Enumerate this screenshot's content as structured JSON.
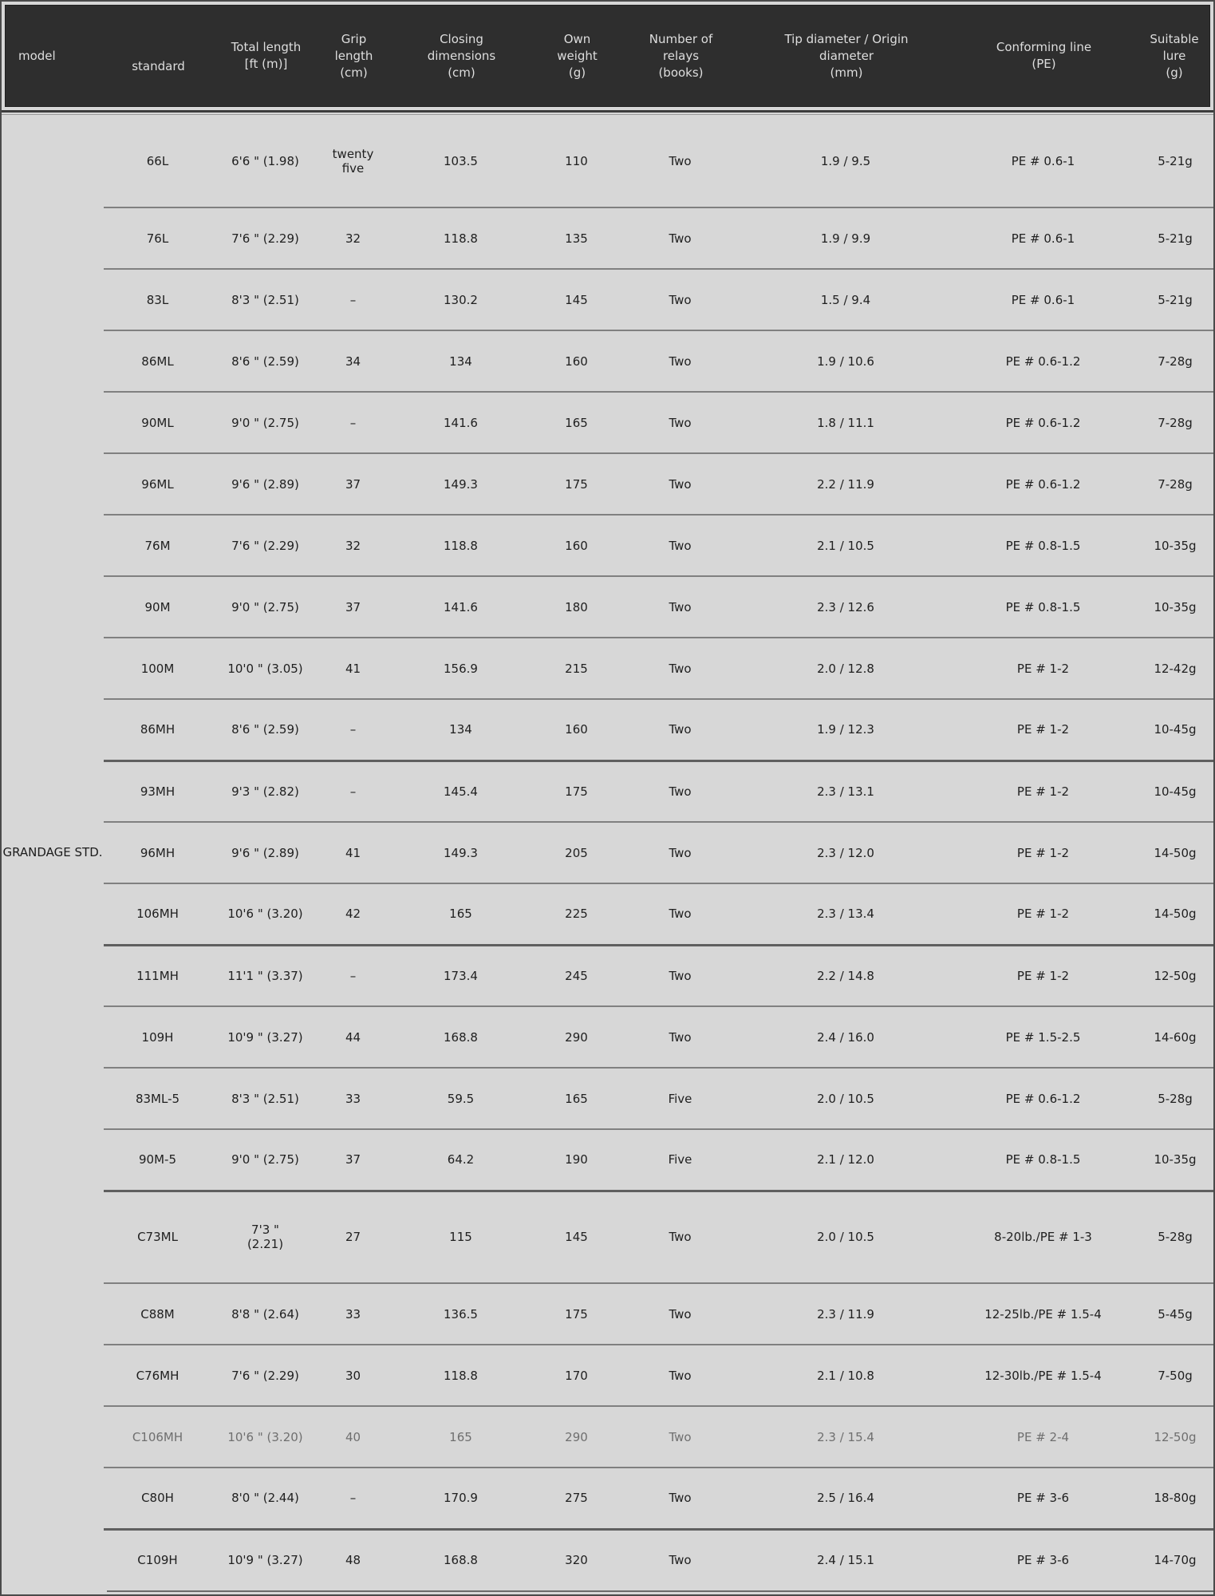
{
  "header": {
    "columns": [
      {
        "id": "model",
        "label": "model"
      },
      {
        "id": "standard",
        "label": "standard"
      },
      {
        "id": "total_length",
        "label": "Total length\n[ft (m)]"
      },
      {
        "id": "grip",
        "label": "Grip\nlength\n(cm)"
      },
      {
        "id": "closing",
        "label": "Closing\ndimensions\n(cm)"
      },
      {
        "id": "weight",
        "label": "Own\nweight\n(g)"
      },
      {
        "id": "relays",
        "label": "Number of\nrelays\n(books)"
      },
      {
        "id": "tip",
        "label": "Tip diameter / Origin\ndiameter\n(mm)"
      },
      {
        "id": "line",
        "label": "Conforming line\n(PE)"
      },
      {
        "id": "lure",
        "label": "Suitable\nlure\n(g)"
      }
    ]
  },
  "table": {
    "group_label": "GRANDAGE STD.",
    "rows": [
      {
        "standard": "66L",
        "total_length": "6'6 \" (1.98)",
        "grip": "twenty\nfive",
        "closing": "103.5",
        "weight": "110",
        "relays": "Two",
        "tip": "1.9 / 9.5",
        "line": "PE # 0.6-1",
        "lure": "5-21g",
        "faint": false,
        "thick_divider": false
      },
      {
        "standard": "76L",
        "total_length": "7'6 \" (2.29)",
        "grip": "32",
        "closing": "118.8",
        "weight": "135",
        "relays": "Two",
        "tip": "1.9 / 9.9",
        "line": "PE # 0.6-1",
        "lure": "5-21g",
        "faint": false,
        "thick_divider": false
      },
      {
        "standard": "83L",
        "total_length": "8'3 \" (2.51)",
        "grip": "–",
        "closing": "130.2",
        "weight": "145",
        "relays": "Two",
        "tip": "1.5 / 9.4",
        "line": "PE # 0.6-1",
        "lure": "5-21g",
        "faint": false,
        "thick_divider": false
      },
      {
        "standard": "86ML",
        "total_length": "8'6 \" (2.59)",
        "grip": "34",
        "closing": "134",
        "weight": "160",
        "relays": "Two",
        "tip": "1.9 / 10.6",
        "line": "PE # 0.6-1.2",
        "lure": "7-28g",
        "faint": false,
        "thick_divider": false
      },
      {
        "standard": "90ML",
        "total_length": "9'0 \" (2.75)",
        "grip": "–",
        "closing": "141.6",
        "weight": "165",
        "relays": "Two",
        "tip": "1.8 / 11.1",
        "line": "PE # 0.6-1.2",
        "lure": "7-28g",
        "faint": false,
        "thick_divider": false
      },
      {
        "standard": "96ML",
        "total_length": "9'6 \" (2.89)",
        "grip": "37",
        "closing": "149.3",
        "weight": "175",
        "relays": "Two",
        "tip": "2.2 / 11.9",
        "line": "PE # 0.6-1.2",
        "lure": "7-28g",
        "faint": false,
        "thick_divider": false
      },
      {
        "standard": "76M",
        "total_length": "7'6 \" (2.29)",
        "grip": "32",
        "closing": "118.8",
        "weight": "160",
        "relays": "Two",
        "tip": "2.1 / 10.5",
        "line": "PE # 0.8-1.5",
        "lure": "10-35g",
        "faint": false,
        "thick_divider": false
      },
      {
        "standard": "90M",
        "total_length": "9'0 \" (2.75)",
        "grip": "37",
        "closing": "141.6",
        "weight": "180",
        "relays": "Two",
        "tip": "2.3 / 12.6",
        "line": "PE # 0.8-1.5",
        "lure": "10-35g",
        "faint": false,
        "thick_divider": false
      },
      {
        "standard": "100M",
        "total_length": "10'0 \" (3.05)",
        "grip": "41",
        "closing": "156.9",
        "weight": "215",
        "relays": "Two",
        "tip": "2.0 / 12.8",
        "line": "PE # 1-2",
        "lure": "12-42g",
        "faint": false,
        "thick_divider": false
      },
      {
        "standard": "86MH",
        "total_length": "8'6 \" (2.59)",
        "grip": "–",
        "closing": "134",
        "weight": "160",
        "relays": "Two",
        "tip": "1.9 / 12.3",
        "line": "PE # 1-2",
        "lure": "10-45g",
        "faint": false,
        "thick_divider": false
      },
      {
        "standard": "93MH",
        "total_length": "9'3 \" (2.82)",
        "grip": "–",
        "closing": "145.4",
        "weight": "175",
        "relays": "Two",
        "tip": "2.3 / 13.1",
        "line": "PE # 1-2",
        "lure": "10-45g",
        "faint": false,
        "thick_divider": true
      },
      {
        "standard": "96MH",
        "total_length": "9'6 \" (2.89)",
        "grip": "41",
        "closing": "149.3",
        "weight": "205",
        "relays": "Two",
        "tip": "2.3 / 12.0",
        "line": "PE # 1-2",
        "lure": "14-50g",
        "faint": false,
        "thick_divider": false
      },
      {
        "standard": "106MH",
        "total_length": "10'6 \" (3.20)",
        "grip": "42",
        "closing": "165",
        "weight": "225",
        "relays": "Two",
        "tip": "2.3 / 13.4",
        "line": "PE # 1-2",
        "lure": "14-50g",
        "faint": false,
        "thick_divider": false
      },
      {
        "standard": "111MH",
        "total_length": "11'1 \" (3.37)",
        "grip": "–",
        "closing": "173.4",
        "weight": "245",
        "relays": "Two",
        "tip": "2.2 / 14.8",
        "line": "PE # 1-2",
        "lure": "12-50g",
        "faint": false,
        "thick_divider": true
      },
      {
        "standard": "109H",
        "total_length": "10'9 \" (3.27)",
        "grip": "44",
        "closing": "168.8",
        "weight": "290",
        "relays": "Two",
        "tip": "2.4 / 16.0",
        "line": "PE # 1.5-2.5",
        "lure": "14-60g",
        "faint": false,
        "thick_divider": false
      },
      {
        "standard": "83ML-5",
        "total_length": "8'3 \" (2.51)",
        "grip": "33",
        "closing": "59.5",
        "weight": "165",
        "relays": "Five",
        "tip": "2.0 / 10.5",
        "line": "PE # 0.6-1.2",
        "lure": "5-28g",
        "faint": false,
        "thick_divider": false
      },
      {
        "standard": "90M-5",
        "total_length": "9'0 \" (2.75)",
        "grip": "37",
        "closing": "64.2",
        "weight": "190",
        "relays": "Five",
        "tip": "2.1 / 12.0",
        "line": "PE # 0.8-1.5",
        "lure": "10-35g",
        "faint": false,
        "thick_divider": false
      },
      {
        "standard": "C73ML",
        "total_length": "7'3 \"\n(2.21)",
        "grip": "27",
        "closing": "115",
        "weight": "145",
        "relays": "Two",
        "tip": "2.0 / 10.5",
        "line": "8-20lb./PE # 1-3",
        "lure": "5-28g",
        "faint": false,
        "thick_divider": true
      },
      {
        "standard": "C88M",
        "total_length": "8'8 \" (2.64)",
        "grip": "33",
        "closing": "136.5",
        "weight": "175",
        "relays": "Two",
        "tip": "2.3 / 11.9",
        "line": "12-25lb./PE # 1.5-4",
        "lure": "5-45g",
        "faint": false,
        "thick_divider": false
      },
      {
        "standard": "C76MH",
        "total_length": "7'6 \" (2.29)",
        "grip": "30",
        "closing": "118.8",
        "weight": "170",
        "relays": "Two",
        "tip": "2.1 / 10.8",
        "line": "12-30lb./PE # 1.5-4",
        "lure": "7-50g",
        "faint": false,
        "thick_divider": false
      },
      {
        "standard": "C106MH",
        "total_length": "10'6 \" (3.20)",
        "grip": "40",
        "closing": "165",
        "weight": "290",
        "relays": "Two",
        "tip": "2.3 / 15.4",
        "line": "PE # 2-4",
        "lure": "12-50g",
        "faint": true,
        "thick_divider": false
      },
      {
        "standard": "C80H",
        "total_length": "8'0 \" (2.44)",
        "grip": "–",
        "closing": "170.9",
        "weight": "275",
        "relays": "Two",
        "tip": "2.5 / 16.4",
        "line": "PE # 3-6",
        "lure": "18-80g",
        "faint": false,
        "thick_divider": false
      },
      {
        "standard": "C109H",
        "total_length": "10'9 \" (3.27)",
        "grip": "48",
        "closing": "168.8",
        "weight": "320",
        "relays": "Two",
        "tip": "2.4 / 15.1",
        "line": "PE # 3-6",
        "lure": "14-70g",
        "faint": false,
        "thick_divider": true
      }
    ]
  }
}
